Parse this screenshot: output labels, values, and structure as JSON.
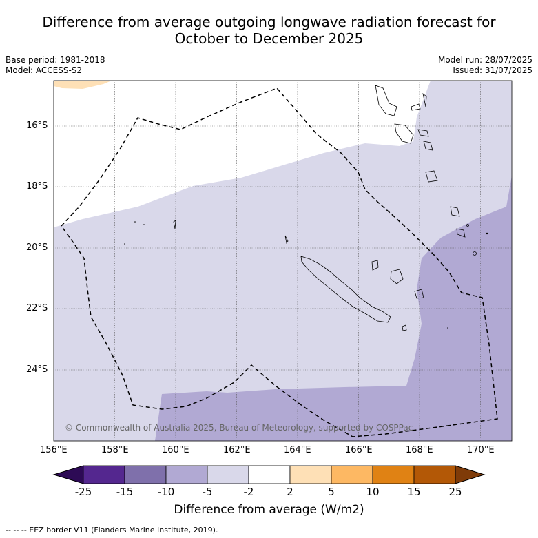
{
  "title_line1": "Difference from average outgoing longwave radiation forecast for",
  "title_line2": "October to December 2025",
  "base_period": "Base period: 1981-2018",
  "model": "Model: ACCESS-S2",
  "model_run": "Model run: 28/07/2025",
  "issued": "Issued: 31/07/2025",
  "copyright": "© Commonwealth of Australia 2025, Bureau of Meteorology, supported by COSPPac",
  "lon_ticks": [
    "156°E",
    "158°E",
    "160°E",
    "162°E",
    "164°E",
    "166°E",
    "168°E",
    "170°E"
  ],
  "lat_ticks": [
    "16°S",
    "18°S",
    "20°S",
    "22°S",
    "24°S"
  ],
  "colorbar": {
    "title": "Difference from average (W/m2)",
    "labels": [
      "-25",
      "-15",
      "-10",
      "-5",
      "-2",
      "2",
      "5",
      "10",
      "15",
      "25"
    ],
    "colors": [
      "#2d0a55",
      "#54278f",
      "#7f70ab",
      "#b1a9d3",
      "#d9d8ea",
      "#ffffff",
      "#fee0b6",
      "#fdb863",
      "#e08214",
      "#b35806",
      "#7f3b08"
    ]
  },
  "footer": "-- -- -- EEZ border V11 (Flanders Marine Institute, 2019)."
}
